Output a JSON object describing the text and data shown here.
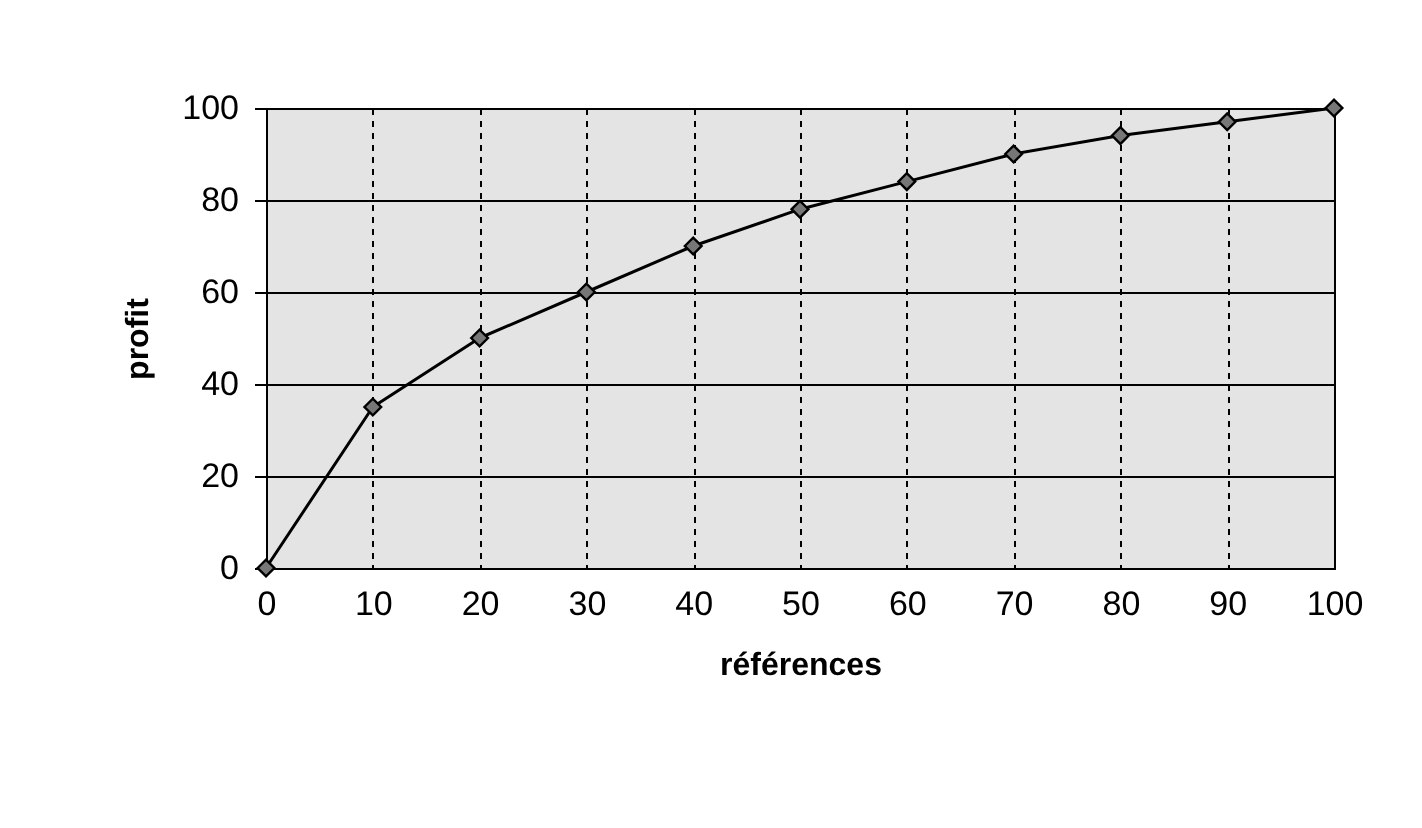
{
  "chart_data": {
    "type": "line",
    "xlabel": "références",
    "ylabel": "profit",
    "x": [
      0,
      10,
      20,
      30,
      40,
      50,
      60,
      70,
      80,
      90,
      100
    ],
    "series": [
      {
        "color": "#000000",
        "values": [
          0,
          35,
          50,
          60,
          70,
          78,
          84,
          90,
          94,
          97,
          100
        ]
      }
    ],
    "xlim": [
      0,
      100
    ],
    "xticks": [
      0,
      10,
      20,
      30,
      40,
      50,
      60,
      70,
      80,
      90,
      100
    ],
    "ylim": [
      0,
      100
    ],
    "yticks": [
      0,
      20,
      40,
      60,
      80,
      100
    ],
    "grid": true,
    "marker": "diamond",
    "line_style": "solid"
  }
}
